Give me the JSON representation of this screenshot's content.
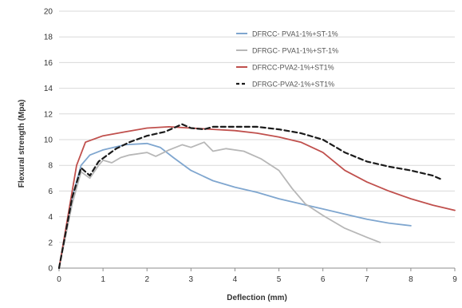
{
  "chart_data": {
    "type": "line",
    "xlabel": "Deflection (mm)",
    "ylabel": "Flexural strength (Mpa)",
    "xlim": [
      0,
      9
    ],
    "ylim": [
      0,
      20
    ],
    "x_ticks": [
      "0",
      "1",
      "2",
      "3",
      "4",
      "5",
      "6",
      "7",
      "8",
      "9"
    ],
    "y_ticks": [
      "0",
      "2",
      "4",
      "6",
      "8",
      "10",
      "12",
      "14",
      "16",
      "18",
      "20"
    ],
    "grid": "horizontal",
    "legend_position": "upper-right",
    "series": [
      {
        "name": "DFRCC- PVA1-1%+ST-1%",
        "color": "#7fa6cf",
        "dash": "solid",
        "points": [
          [
            0,
            0
          ],
          [
            0.3,
            5.5
          ],
          [
            0.5,
            8.0
          ],
          [
            0.7,
            8.8
          ],
          [
            1.0,
            9.2
          ],
          [
            1.5,
            9.6
          ],
          [
            2.0,
            9.7
          ],
          [
            2.3,
            9.4
          ],
          [
            2.6,
            8.6
          ],
          [
            3.0,
            7.6
          ],
          [
            3.5,
            6.8
          ],
          [
            4.0,
            6.3
          ],
          [
            4.5,
            5.9
          ],
          [
            5.0,
            5.4
          ],
          [
            5.5,
            5.0
          ],
          [
            6.0,
            4.6
          ],
          [
            6.5,
            4.2
          ],
          [
            7.0,
            3.8
          ],
          [
            7.5,
            3.5
          ],
          [
            8.0,
            3.3
          ]
        ]
      },
      {
        "name": "DFRGC- PVA1-1%+ST-1%",
        "color": "#b7b7b7",
        "dash": "solid",
        "points": [
          [
            0,
            0
          ],
          [
            0.3,
            5.0
          ],
          [
            0.5,
            7.5
          ],
          [
            0.7,
            7.0
          ],
          [
            0.9,
            8.0
          ],
          [
            1.0,
            8.4
          ],
          [
            1.2,
            8.2
          ],
          [
            1.4,
            8.6
          ],
          [
            1.6,
            8.8
          ],
          [
            2.0,
            9.0
          ],
          [
            2.2,
            8.7
          ],
          [
            2.5,
            9.2
          ],
          [
            2.8,
            9.6
          ],
          [
            3.0,
            9.4
          ],
          [
            3.3,
            9.8
          ],
          [
            3.5,
            9.1
          ],
          [
            3.8,
            9.3
          ],
          [
            4.2,
            9.1
          ],
          [
            4.6,
            8.5
          ],
          [
            5.0,
            7.6
          ],
          [
            5.3,
            6.2
          ],
          [
            5.6,
            5.0
          ],
          [
            6.0,
            4.1
          ],
          [
            6.5,
            3.1
          ],
          [
            7.0,
            2.4
          ],
          [
            7.3,
            2.0
          ]
        ]
      },
      {
        "name": "DFRCC-PVA2-1%+ST1%",
        "color": "#c0504d",
        "dash": "solid",
        "points": [
          [
            0,
            0
          ],
          [
            0.2,
            4.0
          ],
          [
            0.4,
            8.0
          ],
          [
            0.6,
            9.8
          ],
          [
            1.0,
            10.3
          ],
          [
            1.5,
            10.6
          ],
          [
            2.0,
            10.9
          ],
          [
            2.5,
            11.0
          ],
          [
            3.0,
            10.9
          ],
          [
            3.5,
            10.8
          ],
          [
            4.0,
            10.7
          ],
          [
            4.5,
            10.5
          ],
          [
            5.0,
            10.2
          ],
          [
            5.5,
            9.8
          ],
          [
            6.0,
            9.0
          ],
          [
            6.5,
            7.6
          ],
          [
            7.0,
            6.7
          ],
          [
            7.5,
            6.0
          ],
          [
            8.0,
            5.4
          ],
          [
            8.5,
            4.9
          ],
          [
            9.0,
            4.5
          ]
        ]
      },
      {
        "name": "DFRGC-PVA2-1%+ST1%",
        "color": "#1a1a1a",
        "dash": "dashed",
        "points": [
          [
            0,
            0
          ],
          [
            0.3,
            5.5
          ],
          [
            0.5,
            7.8
          ],
          [
            0.7,
            7.2
          ],
          [
            0.9,
            8.3
          ],
          [
            1.1,
            8.8
          ],
          [
            1.3,
            9.3
          ],
          [
            1.6,
            9.8
          ],
          [
            2.0,
            10.3
          ],
          [
            2.4,
            10.6
          ],
          [
            2.8,
            11.2
          ],
          [
            3.0,
            10.9
          ],
          [
            3.3,
            10.8
          ],
          [
            3.5,
            11.0
          ],
          [
            4.0,
            11.0
          ],
          [
            4.5,
            11.0
          ],
          [
            5.0,
            10.8
          ],
          [
            5.5,
            10.5
          ],
          [
            6.0,
            10.0
          ],
          [
            6.5,
            9.0
          ],
          [
            7.0,
            8.3
          ],
          [
            7.5,
            7.9
          ],
          [
            8.0,
            7.6
          ],
          [
            8.5,
            7.2
          ],
          [
            8.7,
            6.9
          ]
        ]
      }
    ]
  }
}
